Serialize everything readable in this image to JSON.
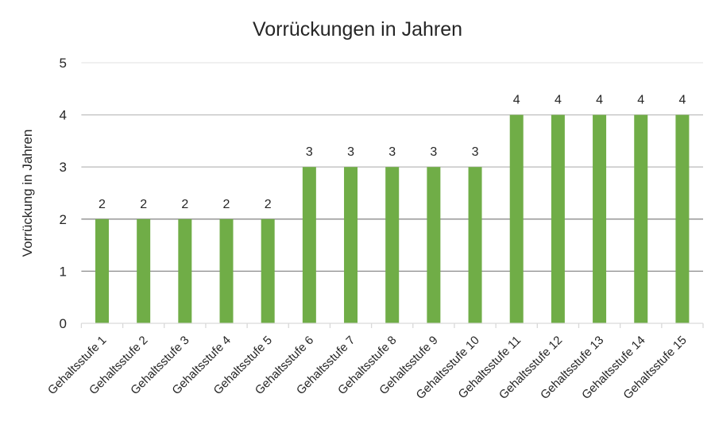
{
  "chart_data": {
    "type": "bar",
    "title": "Vorrückungen in Jahren",
    "xlabel": "",
    "ylabel": "Vorrückung in Jahren",
    "ylim": [
      0,
      5
    ],
    "yticks": [
      "0",
      "1",
      "2",
      "3",
      "4",
      "5"
    ],
    "grid": true,
    "legend": "none",
    "bar_color": "#70ad47",
    "categories": [
      "Gehaltsstufe 1",
      "Gehaltsstufe 2",
      "Gehaltsstufe 3",
      "Gehaltsstufe 4",
      "Gehaltsstufe 5",
      "Gehaltsstufe 6",
      "Gehaltsstufe 7",
      "Gehaltsstufe 8",
      "Gehaltsstufe 9",
      "Gehaltsstufe 10",
      "Gehaltsstufe 11",
      "Gehaltsstufe 12",
      "Gehaltsstufe 13",
      "Gehaltsstufe 14",
      "Gehaltsstufe 15"
    ],
    "values": [
      2,
      2,
      2,
      2,
      2,
      3,
      3,
      3,
      3,
      3,
      4,
      4,
      4,
      4,
      4
    ]
  }
}
